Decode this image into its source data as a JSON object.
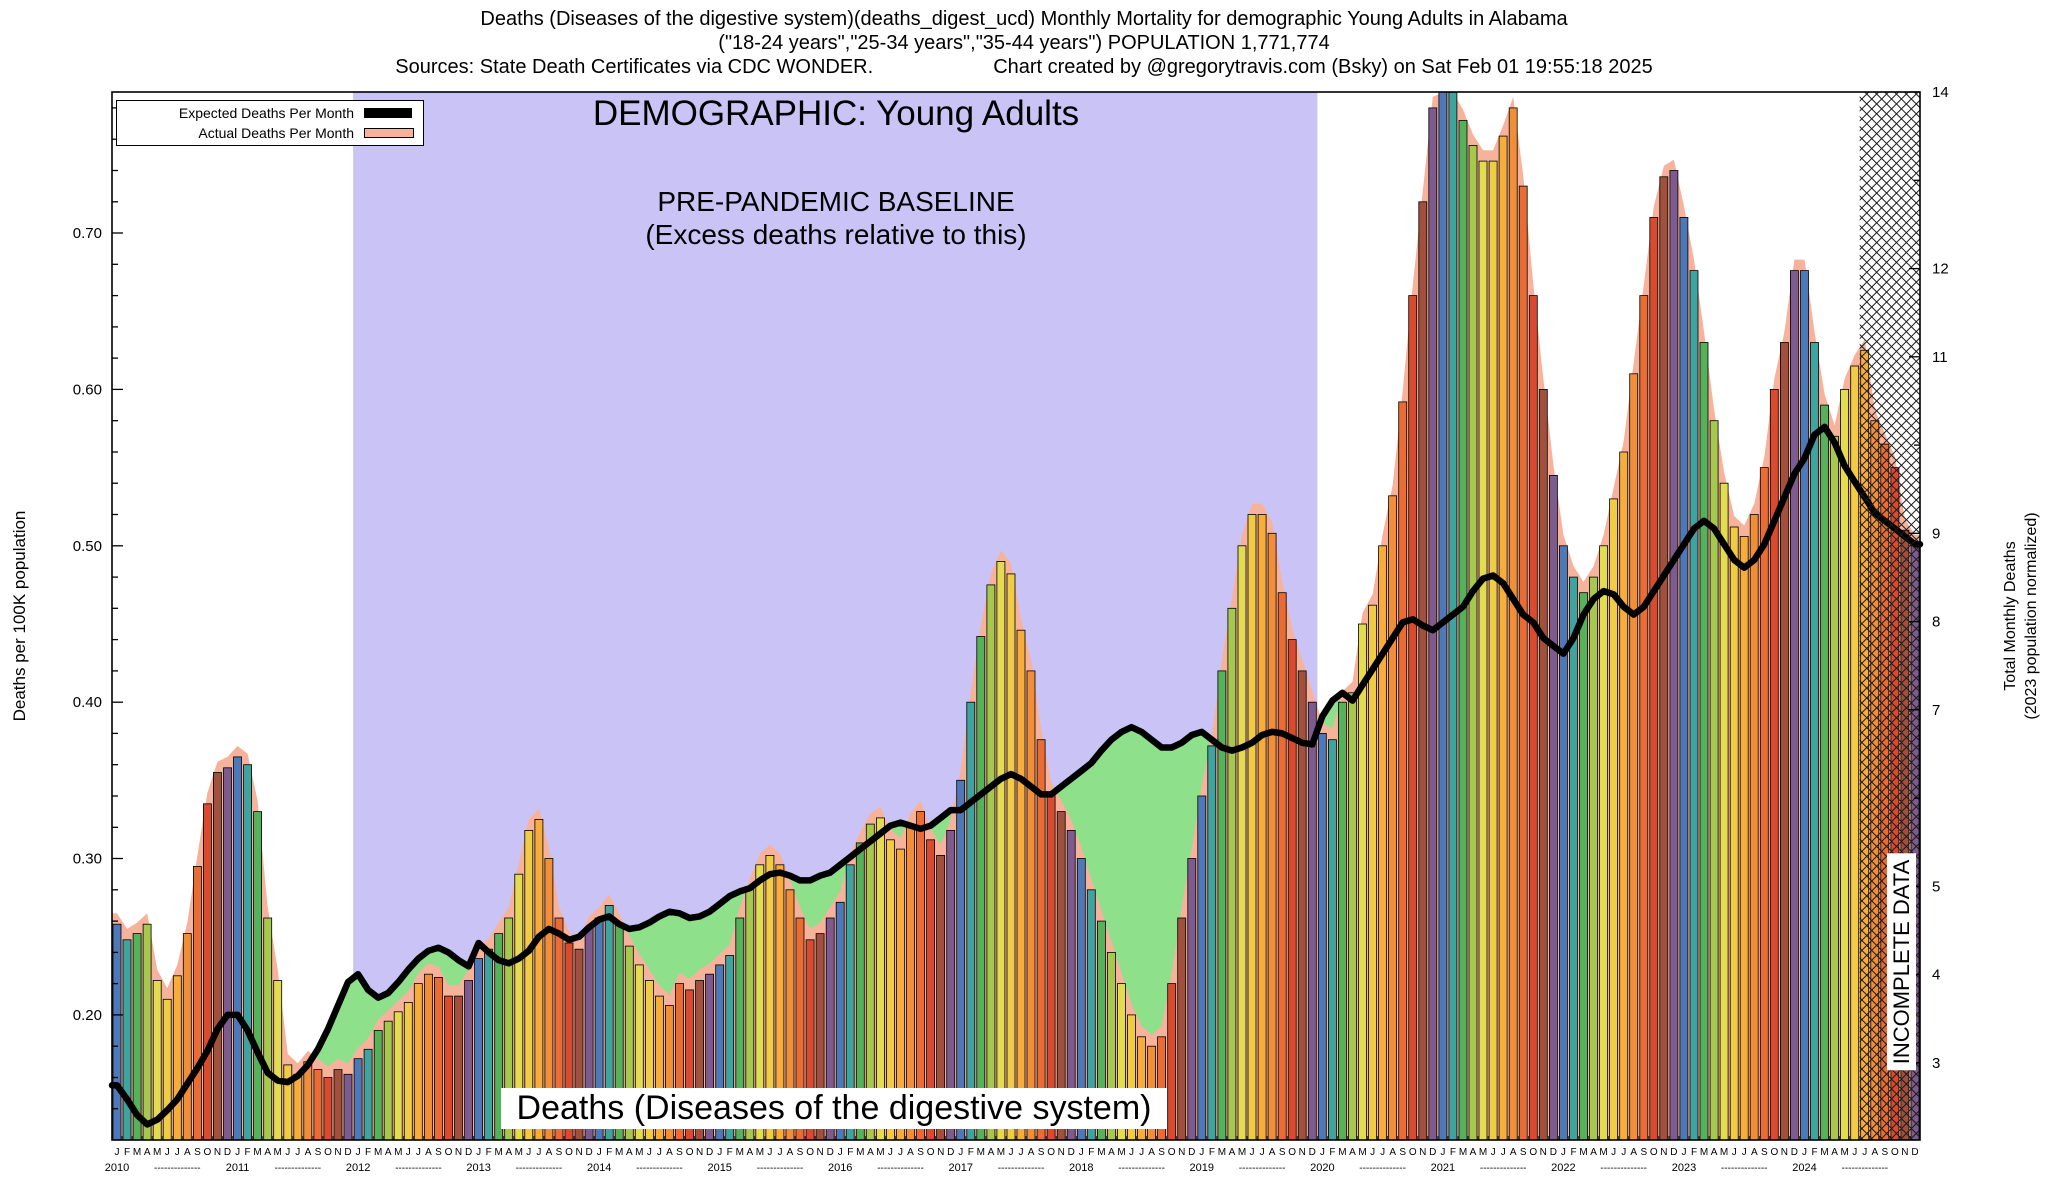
{
  "header": {
    "line1": "Deaths (Diseases of the digestive system)(deaths_digest_ucd) Monthly Mortality for demographic Young Adults in Alabama",
    "line2": "(\"18-24 years\",\"25-34 years\",\"35-44 years\") POPULATION 1,771,774",
    "line3_left": "Sources: State Death Certificates via CDC WONDER.",
    "line3_right": "Chart created by @gregorytravis.com (Bsky) on Sat Feb 01 19:55:18 2025"
  },
  "legend": {
    "expected_label": "Expected Deaths Per Month",
    "actual_label": "Actual Deaths Per Month"
  },
  "annotations": {
    "demographic": "DEMOGRAPHIC: Young Adults",
    "baseline_line1": "PRE-PANDEMIC BASELINE",
    "baseline_line2": "(Excess deaths relative to this)",
    "bottom_label": "Deaths (Diseases of the digestive system)",
    "incomplete": "INCOMPLETE DATA"
  },
  "axes": {
    "left_title": "Deaths per 100K population",
    "right_title_line1": "Total Monthly Deaths",
    "right_title_line2": "(2023 population normalized)",
    "left_ticks": [
      "0.20",
      "0.30",
      "0.40",
      "0.50",
      "0.60",
      "0.70"
    ],
    "right_ticks": [
      3,
      4,
      5,
      7,
      8,
      9,
      11,
      12,
      14
    ]
  },
  "chart_data": {
    "type": "bar",
    "title": "Deaths (Diseases of the digestive system) Monthly Mortality, Young Adults, Alabama",
    "x_description": "Monthly, Jan 2010 - Dec 2024",
    "xlabel": "",
    "ylabel_left": "Deaths per 100K population",
    "ylabel_right": "Total Monthly Deaths (2023 population normalized)",
    "grid": false,
    "legend_position": "top-left",
    "y_domain": [
      0.12,
      0.7902
    ],
    "rate_per_death": 0.056441,
    "months": [
      "J",
      "F",
      "M",
      "A",
      "M",
      "J",
      "J",
      "A",
      "S",
      "O",
      "N",
      "D"
    ],
    "years": [
      "2010",
      "2011",
      "2012",
      "2013",
      "2014",
      "2015",
      "2016",
      "2017",
      "2018",
      "2019",
      "2020",
      "2021",
      "2022",
      "2023",
      "2024"
    ],
    "baseline_band_months": [
      24,
      120
    ],
    "incomplete_from_month": 174,
    "colors": {
      "baseline_band": "#c9c4f5",
      "deficit_green": "#8ee08a",
      "actual_pink": "#f7b29c",
      "expected_line": "#000000"
    },
    "month_colors": [
      "#4e79b8",
      "#3fa3a0",
      "#55b25a",
      "#a6c84e",
      "#e3dc50",
      "#f0cb45",
      "#f6ad3c",
      "#f18f38",
      "#e86c33",
      "#d84b2f",
      "#a0503c",
      "#7d5b8e"
    ],
    "series": [
      {
        "name": "Actual Deaths Per Month",
        "values": [
          0.258,
          0.248,
          0.252,
          0.258,
          0.222,
          0.21,
          0.225,
          0.252,
          0.295,
          0.335,
          0.355,
          0.358,
          0.365,
          0.36,
          0.33,
          0.262,
          0.222,
          0.168,
          0.162,
          0.17,
          0.165,
          0.16,
          0.165,
          0.162,
          0.172,
          0.178,
          0.19,
          0.196,
          0.202,
          0.208,
          0.22,
          0.226,
          0.224,
          0.212,
          0.212,
          0.222,
          0.236,
          0.242,
          0.252,
          0.262,
          0.29,
          0.318,
          0.325,
          0.3,
          0.262,
          0.246,
          0.242,
          0.256,
          0.262,
          0.27,
          0.258,
          0.244,
          0.232,
          0.222,
          0.212,
          0.206,
          0.22,
          0.216,
          0.222,
          0.226,
          0.232,
          0.238,
          0.262,
          0.28,
          0.296,
          0.302,
          0.296,
          0.28,
          0.262,
          0.248,
          0.252,
          0.262,
          0.272,
          0.296,
          0.31,
          0.322,
          0.326,
          0.312,
          0.306,
          0.322,
          0.33,
          0.312,
          0.302,
          0.318,
          0.35,
          0.4,
          0.442,
          0.475,
          0.49,
          0.482,
          0.446,
          0.42,
          0.376,
          0.342,
          0.33,
          0.318,
          0.3,
          0.28,
          0.26,
          0.24,
          0.22,
          0.2,
          0.186,
          0.18,
          0.186,
          0.22,
          0.262,
          0.3,
          0.34,
          0.372,
          0.42,
          0.46,
          0.5,
          0.52,
          0.52,
          0.508,
          0.47,
          0.44,
          0.42,
          0.4,
          0.38,
          0.376,
          0.4,
          0.406,
          0.45,
          0.462,
          0.5,
          0.532,
          0.592,
          0.66,
          0.72,
          0.78,
          0.8,
          0.79,
          0.772,
          0.756,
          0.746,
          0.746,
          0.762,
          0.78,
          0.73,
          0.66,
          0.6,
          0.545,
          0.5,
          0.48,
          0.47,
          0.48,
          0.5,
          0.53,
          0.56,
          0.61,
          0.66,
          0.71,
          0.736,
          0.74,
          0.71,
          0.676,
          0.63,
          0.58,
          0.54,
          0.512,
          0.506,
          0.52,
          0.55,
          0.6,
          0.63,
          0.676,
          0.676,
          0.63,
          0.59,
          0.57,
          0.6,
          0.615,
          0.625,
          0.58,
          0.565,
          0.55,
          0.51,
          0.5
        ]
      },
      {
        "name": "Expected Deaths Per Month",
        "values": [
          0.155,
          0.146,
          0.136,
          0.13,
          0.133,
          0.139,
          0.146,
          0.156,
          0.166,
          0.177,
          0.191,
          0.2,
          0.2,
          0.19,
          0.176,
          0.163,
          0.158,
          0.157,
          0.161,
          0.168,
          0.178,
          0.191,
          0.206,
          0.221,
          0.226,
          0.216,
          0.211,
          0.214,
          0.221,
          0.229,
          0.236,
          0.241,
          0.243,
          0.24,
          0.235,
          0.231,
          0.246,
          0.24,
          0.235,
          0.233,
          0.236,
          0.241,
          0.25,
          0.255,
          0.252,
          0.248,
          0.25,
          0.256,
          0.261,
          0.263,
          0.258,
          0.255,
          0.256,
          0.259,
          0.263,
          0.266,
          0.265,
          0.262,
          0.263,
          0.266,
          0.271,
          0.276,
          0.279,
          0.281,
          0.286,
          0.29,
          0.291,
          0.289,
          0.286,
          0.286,
          0.289,
          0.291,
          0.296,
          0.301,
          0.306,
          0.311,
          0.316,
          0.321,
          0.323,
          0.321,
          0.319,
          0.321,
          0.326,
          0.331,
          0.331,
          0.336,
          0.341,
          0.346,
          0.351,
          0.354,
          0.351,
          0.346,
          0.341,
          0.341,
          0.346,
          0.351,
          0.356,
          0.361,
          0.369,
          0.376,
          0.381,
          0.384,
          0.381,
          0.376,
          0.371,
          0.371,
          0.374,
          0.379,
          0.381,
          0.376,
          0.371,
          0.369,
          0.371,
          0.374,
          0.379,
          0.381,
          0.38,
          0.377,
          0.374,
          0.373,
          0.391,
          0.401,
          0.406,
          0.401,
          0.411,
          0.421,
          0.431,
          0.441,
          0.451,
          0.453,
          0.449,
          0.446,
          0.451,
          0.456,
          0.461,
          0.471,
          0.479,
          0.481,
          0.476,
          0.466,
          0.456,
          0.451,
          0.441,
          0.436,
          0.431,
          0.441,
          0.456,
          0.466,
          0.471,
          0.469,
          0.461,
          0.456,
          0.461,
          0.471,
          0.481,
          0.491,
          0.501,
          0.511,
          0.516,
          0.511,
          0.501,
          0.491,
          0.486,
          0.491,
          0.501,
          0.516,
          0.531,
          0.546,
          0.556,
          0.571,
          0.576,
          0.566,
          0.551,
          0.541,
          0.531,
          0.521,
          0.516,
          0.511,
          0.506,
          0.501
        ]
      }
    ]
  }
}
